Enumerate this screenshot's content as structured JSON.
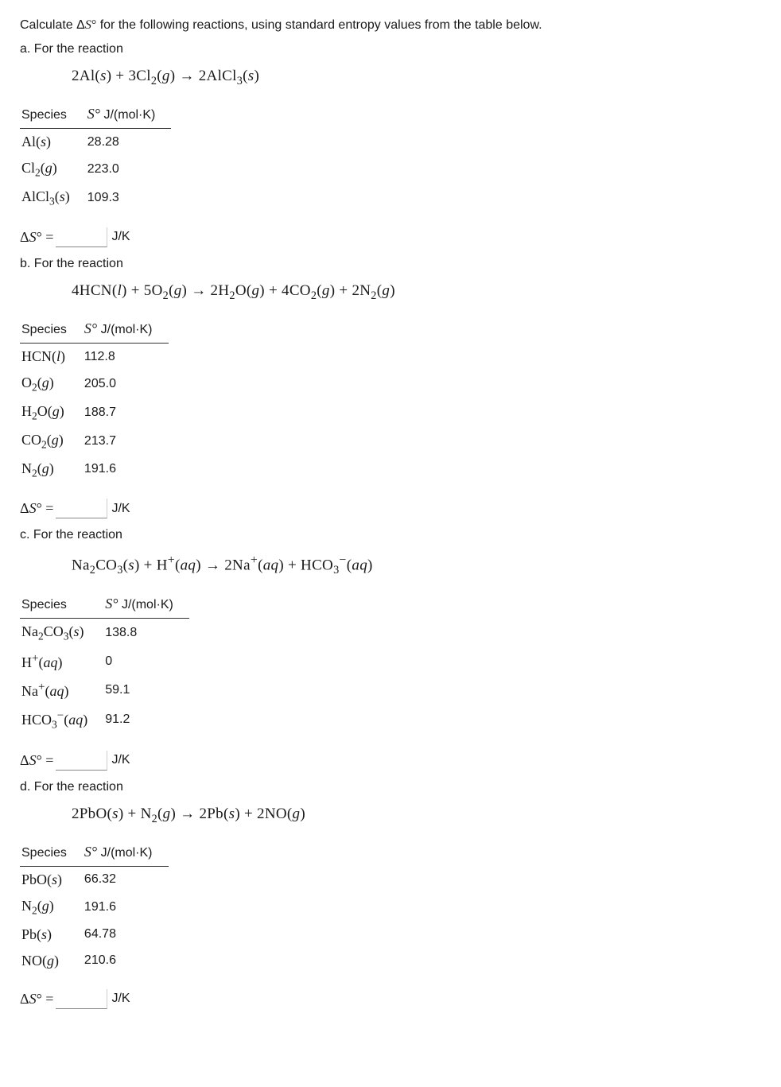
{
  "intro": "Calculate ΔS° for the following reactions, using standard entropy values from the table below.",
  "parts": {
    "a": {
      "label": "a. For the reaction",
      "equation": "2Al(s) + 3Cl₂(g) → 2AlCl₃(s)",
      "table_header_species": "Species",
      "table_header_value": "S° J/(mol·K)",
      "rows": [
        {
          "species": "Al(s)",
          "value": "28.28"
        },
        {
          "species": "Cl₂(g)",
          "value": "223.0"
        },
        {
          "species": "AlCl₃(s)",
          "value": "109.3"
        }
      ],
      "answer_label": "ΔS° =",
      "answer_unit": "J/K"
    },
    "b": {
      "label": "b. For the reaction",
      "equation": "4HCN(l) + 5O₂(g) → 2H₂O(g) + 4CO₂(g) + 2N₂(g)",
      "table_header_species": "Species",
      "table_header_value": "S° J/(mol·K)",
      "rows": [
        {
          "species": "HCN(l)",
          "value": "112.8"
        },
        {
          "species": "O₂(g)",
          "value": "205.0"
        },
        {
          "species": "H₂O(g)",
          "value": "188.7"
        },
        {
          "species": "CO₂(g)",
          "value": "213.7"
        },
        {
          "species": "N₂(g)",
          "value": "191.6"
        }
      ],
      "answer_label": "ΔS° =",
      "answer_unit": "J/K"
    },
    "c": {
      "label": "c. For the reaction",
      "equation": "Na₂CO₃(s) + H⁺(aq) → 2Na⁺(aq) + HCO₃⁻(aq)",
      "table_header_species": "Species",
      "table_header_value": "S° J/(mol·K)",
      "rows": [
        {
          "species": "Na₂CO₃(s)",
          "value": "138.8"
        },
        {
          "species": "H⁺(aq)",
          "value": "0"
        },
        {
          "species": "Na⁺(aq)",
          "value": "59.1"
        },
        {
          "species": "HCO₃⁻(aq)",
          "value": "91.2"
        }
      ],
      "answer_label": "ΔS° =",
      "answer_unit": "J/K"
    },
    "d": {
      "label": "d. For the reaction",
      "equation": "2PbO(s) + N₂(g) → 2Pb(s) + 2NO(g)",
      "table_header_species": "Species",
      "table_header_value": "S° J/(mol·K)",
      "rows": [
        {
          "species": "PbO(s)",
          "value": "66.32"
        },
        {
          "species": "N₂(g)",
          "value": "191.6"
        },
        {
          "species": "Pb(s)",
          "value": "64.78"
        },
        {
          "species": "NO(g)",
          "value": "210.6"
        }
      ],
      "answer_label": "ΔS° =",
      "answer_unit": "J/K"
    }
  }
}
